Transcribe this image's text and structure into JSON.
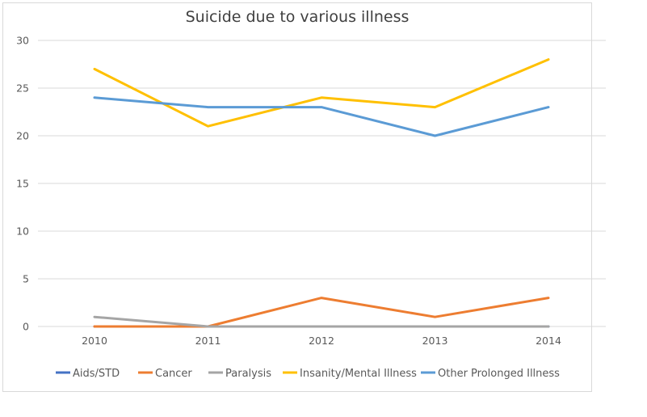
{
  "chart_data": {
    "type": "line",
    "title": "Suicide due to various illness",
    "xlabel": "",
    "ylabel": "",
    "categories": [
      "2010",
      "2011",
      "2012",
      "2013",
      "2014"
    ],
    "ylim": [
      0,
      30
    ],
    "yticks": [
      0,
      5,
      10,
      15,
      20,
      25,
      30
    ],
    "ytick_labels": [
      "0",
      "5",
      "10",
      "15",
      "20",
      "25",
      "30"
    ],
    "grid": true,
    "legend_position": "bottom",
    "series": [
      {
        "name": "Aids/STD",
        "color": "#4472c4",
        "values": [
          0,
          0,
          0,
          0,
          0
        ]
      },
      {
        "name": "Cancer",
        "color": "#ed7d31",
        "values": [
          0,
          0,
          3,
          1,
          3
        ]
      },
      {
        "name": "Paralysis",
        "color": "#a5a5a5",
        "values": [
          1,
          0,
          0,
          0,
          0
        ]
      },
      {
        "name": "Insanity/Mental Illness",
        "color": "#ffc000",
        "values": [
          27,
          21,
          24,
          23,
          28
        ]
      },
      {
        "name": "Other Prolonged Illness",
        "color": "#5b9bd5",
        "values": [
          24,
          23,
          23,
          20,
          23
        ]
      }
    ]
  }
}
